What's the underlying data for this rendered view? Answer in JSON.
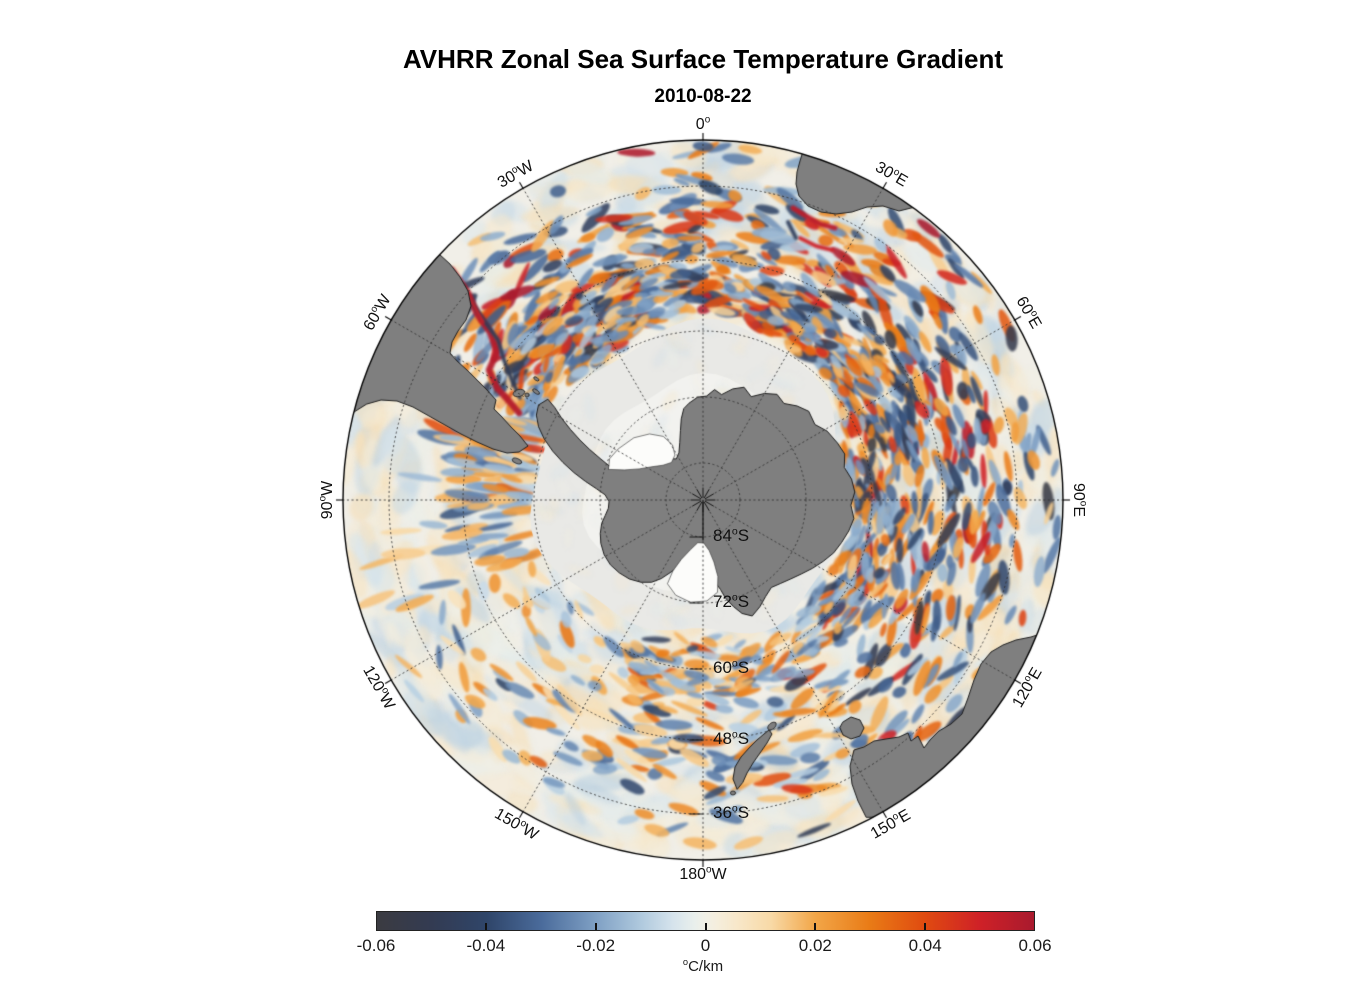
{
  "figure": {
    "title": "AVHRR Zonal Sea Surface Temperature Gradient",
    "subtitle": "2010-08-22"
  },
  "map": {
    "longitude_labels": [
      {
        "text": "0°",
        "deg": 0
      },
      {
        "text": "30°E",
        "deg": 30
      },
      {
        "text": "60°E",
        "deg": 60
      },
      {
        "text": "90°E",
        "deg": 90
      },
      {
        "text": "120°E",
        "deg": 120
      },
      {
        "text": "150°E",
        "deg": 150
      },
      {
        "text": "180°W",
        "deg": 180
      },
      {
        "text": "150°W",
        "deg": 210
      },
      {
        "text": "120°W",
        "deg": 240
      },
      {
        "text": "90°W",
        "deg": 270
      },
      {
        "text": "60°W",
        "deg": 300
      },
      {
        "text": "30°W",
        "deg": 330
      }
    ],
    "latitude_labels": [
      {
        "text": "84°S",
        "lat": 84
      },
      {
        "text": "72°S",
        "lat": 72
      },
      {
        "text": "60°S",
        "lat": 60
      },
      {
        "text": "48°S",
        "lat": 48
      },
      {
        "text": "36°S",
        "lat": 36
      }
    ],
    "colors": {
      "ocean": "#f1efe8",
      "sea_ice": "#e9e9e6",
      "sea_ice_inner": "#f2f2ef",
      "ice_shelf_white": "#fcfcfa",
      "land": "#7f7f7f",
      "coastline": "#1f1f1f",
      "graticule": "#333333",
      "rim": "#000000"
    }
  },
  "colorbar": {
    "min": -0.06,
    "max": 0.06,
    "tick_labels": [
      "-0.06",
      "-0.04",
      "-0.02",
      "0",
      "0.02",
      "0.04",
      "0.06"
    ],
    "tick_values": [
      -0.06,
      -0.04,
      -0.02,
      0,
      0.02,
      0.04,
      0.06
    ],
    "unit_label": "°C/km",
    "stops": [
      {
        "v": -0.06,
        "c": "#3b3b41"
      },
      {
        "v": -0.05,
        "c": "#333b52"
      },
      {
        "v": -0.04,
        "c": "#2f4569"
      },
      {
        "v": -0.03,
        "c": "#4a6b9b"
      },
      {
        "v": -0.02,
        "c": "#7fa0c4"
      },
      {
        "v": -0.012,
        "c": "#aec8dd"
      },
      {
        "v": -0.006,
        "c": "#d5e3ec"
      },
      {
        "v": -0.002,
        "c": "#e9efec"
      },
      {
        "v": 0.0,
        "c": "#f1f0e6"
      },
      {
        "v": 0.002,
        "c": "#f5eedd"
      },
      {
        "v": 0.006,
        "c": "#f8e7c8"
      },
      {
        "v": 0.012,
        "c": "#f8d9a6"
      },
      {
        "v": 0.02,
        "c": "#f2a648"
      },
      {
        "v": 0.03,
        "c": "#e97b16"
      },
      {
        "v": 0.04,
        "c": "#e04b10"
      },
      {
        "v": 0.05,
        "c": "#cf2127"
      },
      {
        "v": 0.06,
        "c": "#a91a2e"
      }
    ]
  },
  "chart_data": {
    "type": "heatmap",
    "title": "AVHRR Zonal Sea Surface Temperature Gradient",
    "subtitle": "2010-08-22",
    "projection": "south-polar-stereographic",
    "variable": "zonal sea surface temperature gradient",
    "units": "°C/km",
    "colorbar_range": [
      -0.06,
      0.06
    ],
    "colorbar_ticks": [
      -0.06,
      -0.04,
      -0.02,
      0,
      0.02,
      0.04,
      0.06
    ],
    "longitude_ticks": [
      "0°",
      "30°E",
      "60°E",
      "90°E",
      "120°E",
      "150°E",
      "180°W",
      "150°W",
      "120°W",
      "90°W",
      "60°W",
      "30°W"
    ],
    "latitude_ticks": [
      "84°S",
      "72°S",
      "60°S",
      "48°S",
      "36°S"
    ],
    "legend_position": "bottom"
  }
}
